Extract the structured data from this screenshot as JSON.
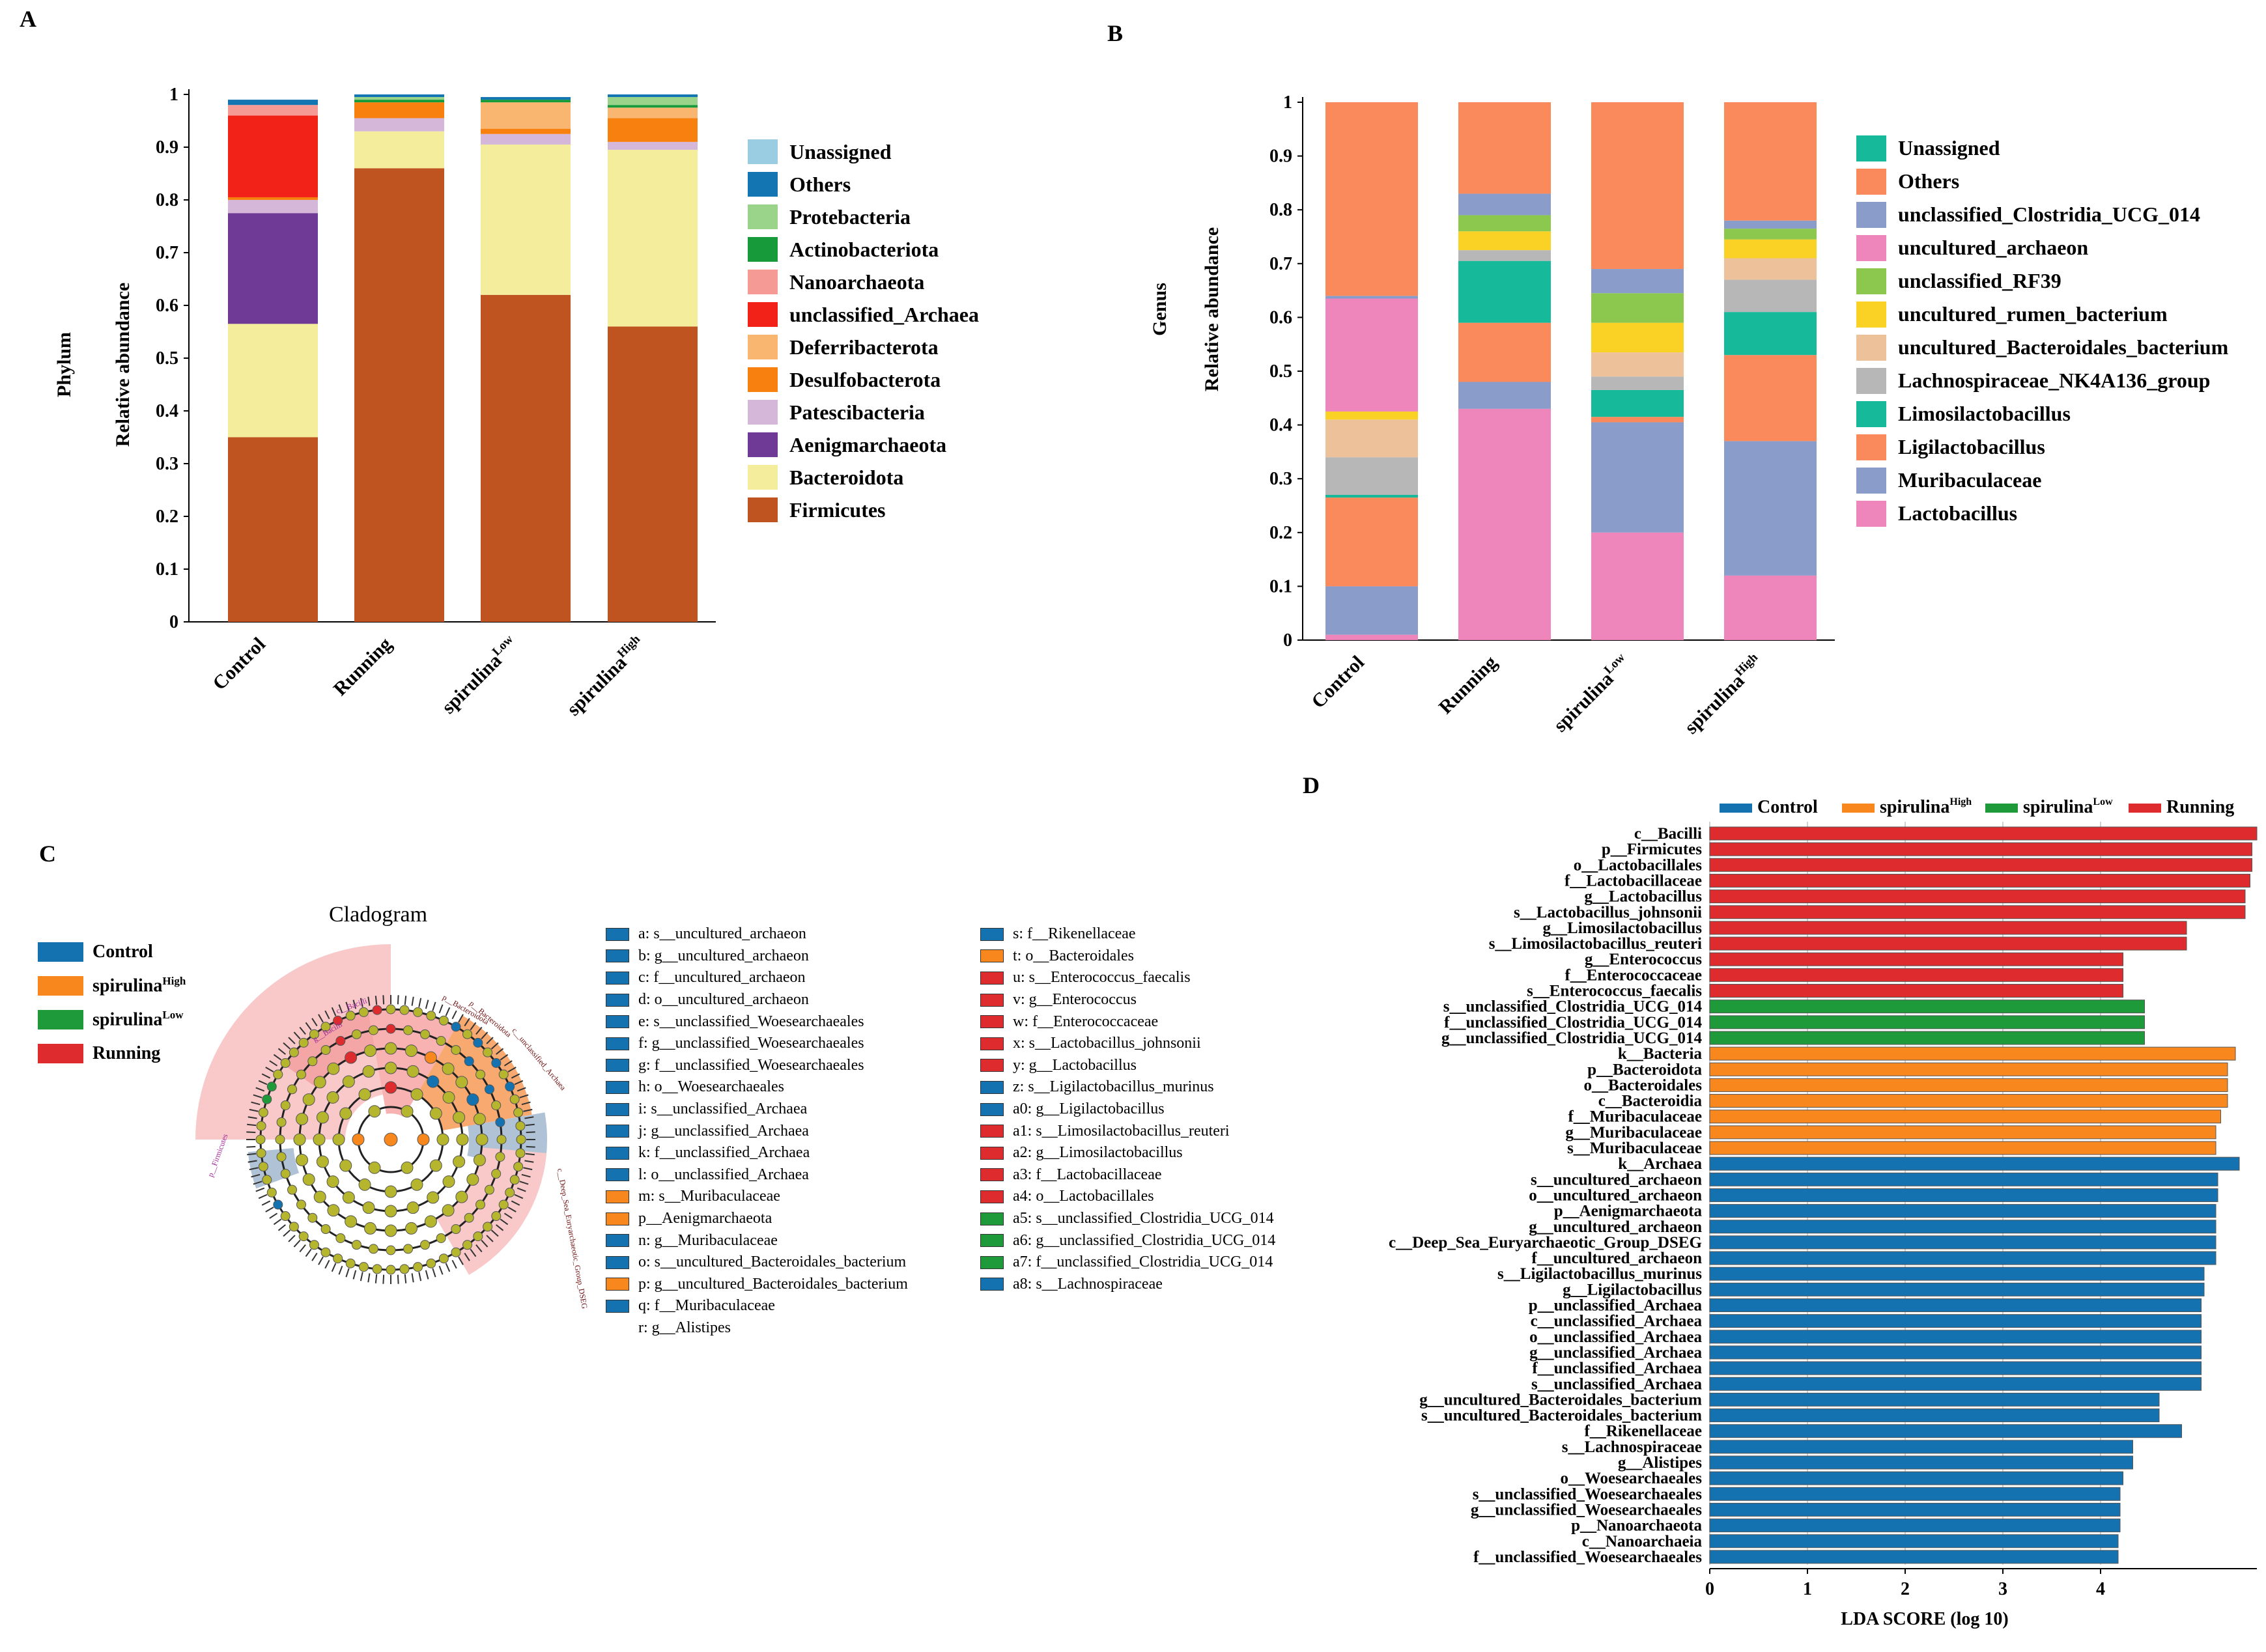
{
  "panels": {
    "a": "A",
    "b": "B",
    "c": "C",
    "d": "D"
  },
  "chart_data": [
    {
      "type": "bar",
      "stacked": true,
      "id": "phylum",
      "ylabel_outer": "Phylum",
      "ylabel": "Relative abundance",
      "ylim": [
        0,
        1
      ],
      "yticks": [
        "0",
        "0.1",
        "0.2",
        "0.3",
        "0.4",
        "0.5",
        "0.6",
        "0.7",
        "0.8",
        "0.9",
        "1"
      ],
      "categories": [
        "Control",
        "Running",
        "spirulina",
        "spirulina"
      ],
      "category_superscripts": [
        "",
        "",
        "Low",
        "High"
      ],
      "series": [
        {
          "name": "Firmicutes",
          "color": "#BF5420",
          "values": [
            0.35,
            0.86,
            0.62,
            0.56
          ]
        },
        {
          "name": "Bacteroidota",
          "color": "#F4EE9C",
          "values": [
            0.215,
            0.07,
            0.285,
            0.335
          ]
        },
        {
          "name": "Aenigmarchaeota",
          "color": "#6E3A96",
          "values": [
            0.21,
            0.0,
            0.0,
            0.0
          ]
        },
        {
          "name": "Patescibacteria",
          "color": "#D5B7D9",
          "values": [
            0.025,
            0.025,
            0.02,
            0.015
          ]
        },
        {
          "name": "Desulfobacterota",
          "color": "#F8800F",
          "values": [
            0.005,
            0.03,
            0.01,
            0.045
          ]
        },
        {
          "name": "Deferribacterota",
          "color": "#F8B670",
          "values": [
            0.0,
            0.0,
            0.05,
            0.02
          ]
        },
        {
          "name": "unclassified_Archaea",
          "color": "#F22219",
          "values": [
            0.155,
            0.0,
            0.0,
            0.0
          ]
        },
        {
          "name": "Nanoarchaeota",
          "color": "#F69A96",
          "values": [
            0.02,
            0.0,
            0.0,
            0.0
          ]
        },
        {
          "name": "Actinobacteriota",
          "color": "#169A3A",
          "values": [
            0.0,
            0.005,
            0.005,
            0.005
          ]
        },
        {
          "name": "Protebacteria",
          "color": "#9AD48A",
          "values": [
            0.0,
            0.005,
            0.0,
            0.015
          ]
        },
        {
          "name": "Others",
          "color": "#1375B2",
          "values": [
            0.01,
            0.005,
            0.005,
            0.005
          ]
        },
        {
          "name": "Unassigned",
          "color": "#9ACCE2",
          "values": [
            0.0,
            0.0,
            0.0,
            0.0
          ]
        }
      ],
      "legend_order": [
        "Unassigned",
        "Others",
        "Protebacteria",
        "Actinobacteriota",
        "Nanoarchaeota",
        "unclassified_Archaea",
        "Deferribacterota",
        "Desulfobacterota",
        "Patescibacteria",
        "Aenigmarchaeota",
        "Bacteroidota",
        "Firmicutes"
      ]
    },
    {
      "type": "bar",
      "stacked": true,
      "id": "genus",
      "ylabel_outer": "Genus",
      "ylabel": "Relative abundance",
      "ylim": [
        0,
        1
      ],
      "yticks": [
        "0",
        "0.1",
        "0.2",
        "0.3",
        "0.4",
        "0.5",
        "0.6",
        "0.7",
        "0.8",
        "0.9",
        "1"
      ],
      "categories": [
        "Control",
        "Running",
        "spirulina",
        "spirulina"
      ],
      "category_superscripts": [
        "",
        "",
        "Low",
        "High"
      ],
      "series": [
        {
          "name": "Lactobacillus",
          "color": "#EE86BB",
          "values": [
            0.01,
            0.43,
            0.2,
            0.12
          ]
        },
        {
          "name": "Muribaculaceae",
          "color": "#8A9CCA",
          "values": [
            0.09,
            0.05,
            0.205,
            0.25
          ]
        },
        {
          "name": "Ligilactobacillus",
          "color": "#FA8A5B",
          "values": [
            0.165,
            0.11,
            0.01,
            0.16
          ]
        },
        {
          "name": "Limosilactobacillus",
          "color": "#17B99B",
          "values": [
            0.005,
            0.115,
            0.05,
            0.08
          ]
        },
        {
          "name": "Lachnospiraceae_NK4A136_group",
          "color": "#B7B7B7",
          "values": [
            0.07,
            0.02,
            0.025,
            0.06
          ]
        },
        {
          "name": "uncultured_Bacteroidales_bacterium",
          "color": "#EDC29A",
          "values": [
            0.07,
            0.0,
            0.045,
            0.04
          ]
        },
        {
          "name": "uncultured_rumen_bacterium",
          "color": "#F9D225",
          "values": [
            0.015,
            0.035,
            0.055,
            0.035
          ]
        },
        {
          "name": "unclassified_RF39",
          "color": "#8CC84D",
          "values": [
            0.0,
            0.03,
            0.055,
            0.02
          ]
        },
        {
          "name": "uncultured_archaeon",
          "color": "#EE86BB",
          "values": [
            0.21,
            0.0,
            0.0,
            0.0
          ]
        },
        {
          "name": "unclassified_Clostridia_UCG_014",
          "color": "#8A9CCA",
          "values": [
            0.005,
            0.04,
            0.045,
            0.015
          ]
        },
        {
          "name": "Others",
          "color": "#FA8A5B",
          "values": [
            0.36,
            0.17,
            0.31,
            0.22
          ]
        },
        {
          "name": "Unassigned",
          "color": "#17B99B",
          "values": [
            0.0,
            0.0,
            0.0,
            0.0
          ]
        }
      ],
      "legend_order": [
        "Unassigned",
        "Others",
        "unclassified_Clostridia_UCG_014",
        "uncultured_archaeon",
        "unclassified_RF39",
        "uncultured_rumen_bacterium",
        "uncultured_Bacteroidales_bacterium",
        "Lachnospiraceae_NK4A136_group",
        "Limosilactobacillus",
        "Ligilactobacillus",
        "Muribaculaceae",
        "Lactobacillus"
      ]
    },
    {
      "type": "bar",
      "orientation": "horizontal",
      "id": "lda",
      "xlabel": "LDA SCORE (log 10)",
      "xlim": [
        0,
        5.6
      ],
      "xticks": [
        0,
        1,
        2,
        3,
        4
      ],
      "groups": [
        {
          "name": "Control",
          "sup": "",
          "color": "#1472B0"
        },
        {
          "name": "spirulina",
          "sup": "High",
          "color": "#F8871D"
        },
        {
          "name": "spirulina",
          "sup": "Low",
          "color": "#1E9A3A"
        },
        {
          "name": "Running",
          "sup": "",
          "color": "#DE2B2D"
        }
      ],
      "bars": [
        {
          "label": "c__Bacilli",
          "value": 5.6,
          "group": 3
        },
        {
          "label": "p__Firmicutes",
          "value": 5.55,
          "group": 3
        },
        {
          "label": "o__Lactobacillales",
          "value": 5.55,
          "group": 3
        },
        {
          "label": "f__Lactobacillaceae",
          "value": 5.53,
          "group": 3
        },
        {
          "label": "g__Lactobacillus",
          "value": 5.48,
          "group": 3
        },
        {
          "label": "s__Lactobacillus_johnsonii",
          "value": 5.48,
          "group": 3
        },
        {
          "label": "g__Limosilactobacillus",
          "value": 4.88,
          "group": 3
        },
        {
          "label": "s__Limosilactobacillus_reuteri",
          "value": 4.88,
          "group": 3
        },
        {
          "label": "g__Enterococcus",
          "value": 4.23,
          "group": 3
        },
        {
          "label": "f__Enterococcaceae",
          "value": 4.23,
          "group": 3
        },
        {
          "label": "s__Enterococcus_faecalis",
          "value": 4.23,
          "group": 3
        },
        {
          "label": "s__unclassified_Clostridia_UCG_014",
          "value": 4.45,
          "group": 2
        },
        {
          "label": "f__unclassified_Clostridia_UCG_014",
          "value": 4.45,
          "group": 2
        },
        {
          "label": "g__unclassified_Clostridia_UCG_014",
          "value": 4.45,
          "group": 2
        },
        {
          "label": "k__Bacteria",
          "value": 5.38,
          "group": 1
        },
        {
          "label": "p__Bacteroidota",
          "value": 5.3,
          "group": 1
        },
        {
          "label": "o__Bacteroidales",
          "value": 5.3,
          "group": 1
        },
        {
          "label": "c__Bacteroidia",
          "value": 5.3,
          "group": 1
        },
        {
          "label": "f__Muribaculaceae",
          "value": 5.23,
          "group": 1
        },
        {
          "label": "g__Muribaculaceae",
          "value": 5.18,
          "group": 1
        },
        {
          "label": "s__Muribaculaceae",
          "value": 5.18,
          "group": 1
        },
        {
          "label": "k__Archaea",
          "value": 5.42,
          "group": 0
        },
        {
          "label": "s__uncultured_archaeon",
          "value": 5.2,
          "group": 0
        },
        {
          "label": "o__uncultured_archaeon",
          "value": 5.2,
          "group": 0
        },
        {
          "label": "p__Aenigmarchaeota",
          "value": 5.18,
          "group": 0
        },
        {
          "label": "g__uncultured_archaeon",
          "value": 5.18,
          "group": 0
        },
        {
          "label": "c__Deep_Sea_Euryarchaeotic_Group_DSEG",
          "value": 5.18,
          "group": 0
        },
        {
          "label": "f__uncultured_archaeon",
          "value": 5.18,
          "group": 0
        },
        {
          "label": "s__Ligilactobacillus_murinus",
          "value": 5.06,
          "group": 0
        },
        {
          "label": "g__Ligilactobacillus",
          "value": 5.06,
          "group": 0
        },
        {
          "label": "p__unclassified_Archaea",
          "value": 5.03,
          "group": 0
        },
        {
          "label": "c__unclassified_Archaea",
          "value": 5.03,
          "group": 0
        },
        {
          "label": "o__unclassified_Archaea",
          "value": 5.03,
          "group": 0
        },
        {
          "label": "g__unclassified_Archaea",
          "value": 5.03,
          "group": 0
        },
        {
          "label": "f__unclassified_Archaea",
          "value": 5.03,
          "group": 0
        },
        {
          "label": "s__unclassified_Archaea",
          "value": 5.03,
          "group": 0
        },
        {
          "label": "g__uncultured_Bacteroidales_bacterium",
          "value": 4.6,
          "group": 0
        },
        {
          "label": "s__uncultured_Bacteroidales_bacterium",
          "value": 4.6,
          "group": 0
        },
        {
          "label": "f__Rikenellaceae",
          "value": 4.83,
          "group": 0
        },
        {
          "label": "s__Lachnospiraceae",
          "value": 4.33,
          "group": 0
        },
        {
          "label": "g__Alistipes",
          "value": 4.33,
          "group": 0
        },
        {
          "label": "o__Woesearchaeales",
          "value": 4.23,
          "group": 0
        },
        {
          "label": "s__unclassified_Woesearchaeales",
          "value": 4.2,
          "group": 0
        },
        {
          "label": "g__unclassified_Woesearchaeales",
          "value": 4.2,
          "group": 0
        },
        {
          "label": "p__Nanoarchaeota",
          "value": 4.2,
          "group": 0
        },
        {
          "label": "c__Nanoarchaeia",
          "value": 4.18,
          "group": 0
        },
        {
          "label": "f__unclassified_Woesearchaeales",
          "value": 4.18,
          "group": 0
        }
      ]
    }
  ],
  "cladogram": {
    "title": "Cladogram",
    "legend": [
      {
        "name": "Control",
        "sup": "",
        "color": "#1472B0"
      },
      {
        "name": "spirulina",
        "sup": "High",
        "color": "#F8871D"
      },
      {
        "name": "spirulina",
        "sup": "Low",
        "color": "#1E9A3A"
      },
      {
        "name": "Running",
        "sup": "",
        "color": "#DE2B2D"
      }
    ],
    "arc_labels": [
      "g__Bacilli",
      "c__Bacilli",
      "p__Firmicutes",
      "p__Bacteroidota",
      "c__unclassified_Archaea",
      "c__Deep_Sea_Euryarchaeotic_Group_DSEG",
      "p__Bacteroidota"
    ],
    "key_col1": [
      {
        "text": "a: s__uncultured_archaeon",
        "color": "#1472B0"
      },
      {
        "text": "b: g__uncultured_archaeon",
        "color": "#1472B0"
      },
      {
        "text": "c: f__uncultured_archaeon",
        "color": "#1472B0"
      },
      {
        "text": "d: o__uncultured_archaeon",
        "color": "#1472B0"
      },
      {
        "text": "e: s__unclassified_Woesearchaeales",
        "color": "#1472B0"
      },
      {
        "text": "f: g__unclassified_Woesearchaeales",
        "color": "#1472B0"
      },
      {
        "text": "g: f__unclassified_Woesearchaeales",
        "color": "#1472B0"
      },
      {
        "text": "h: o__Woesearchaeales",
        "color": "#1472B0"
      },
      {
        "text": "i: s__unclassified_Archaea",
        "color": "#1472B0"
      },
      {
        "text": "j: g__unclassified_Archaea",
        "color": "#1472B0"
      },
      {
        "text": "k: f__unclassified_Archaea",
        "color": "#1472B0"
      },
      {
        "text": "l: o__unclassified_Archaea",
        "color": "#1472B0"
      },
      {
        "text": "m: s__Muribaculaceae",
        "color": "#F8871D"
      },
      {
        "text": "p__Aenigmarchaeota",
        "color": "#F8871D"
      },
      {
        "text": "n: g__Muribaculaceae",
        "color": "#1472B0"
      },
      {
        "text": "o: s__uncultured_Bacteroidales_bacterium",
        "color": "#1472B0"
      },
      {
        "text": "p: g__uncultured_Bacteroidales_bacterium",
        "color": "#F8871D"
      },
      {
        "text": "q: f__Muribaculaceae",
        "color": "#1472B0"
      },
      {
        "text": "r: g__Alistipes",
        "color": ""
      }
    ],
    "key_col2": [
      {
        "text": "s: f__Rikenellaceae",
        "color": "#1472B0"
      },
      {
        "text": "t: o__Bacteroidales",
        "color": "#F8871D"
      },
      {
        "text": "u: s__Enterococcus_faecalis",
        "color": "#DE2B2D"
      },
      {
        "text": "v: g__Enterococcus",
        "color": "#DE2B2D"
      },
      {
        "text": "w: f__Enterococcaceae",
        "color": "#DE2B2D"
      },
      {
        "text": "x: s__Lactobacillus_johnsonii",
        "color": "#DE2B2D"
      },
      {
        "text": "y: g__Lactobacillus",
        "color": "#DE2B2D"
      },
      {
        "text": "z: s__Ligilactobacillus_murinus",
        "color": "#1472B0"
      },
      {
        "text": "a0: g__Ligilactobacillus",
        "color": "#1472B0"
      },
      {
        "text": "a1: s__Limosilactobacillus_reuteri",
        "color": "#DE2B2D"
      },
      {
        "text": "a2: g__Limosilactobacillus",
        "color": "#DE2B2D"
      },
      {
        "text": "a3: f__Lactobacillaceae",
        "color": "#DE2B2D"
      },
      {
        "text": "a4: o__Lactobacillales",
        "color": "#DE2B2D"
      },
      {
        "text": "a5: s__unclassified_Clostridia_UCG_014",
        "color": "#1E9A3A"
      },
      {
        "text": "a6: g__unclassified_Clostridia_UCG_014",
        "color": "#1E9A3A"
      },
      {
        "text": "a7: f__unclassified_Clostridia_UCG_014",
        "color": "#1E9A3A"
      },
      {
        "text": "a8: s__Lachnospiraceae",
        "color": "#1472B0"
      }
    ]
  }
}
